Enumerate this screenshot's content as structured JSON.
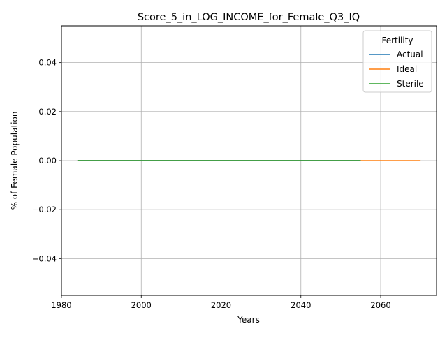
{
  "chart_data": {
    "type": "line",
    "title": "Score_5_in_LOG_INCOME_for_Female_Q3_IQ",
    "xlabel": "Years",
    "ylabel": "% of Female Population",
    "xlim": [
      1980,
      2074
    ],
    "ylim": [
      -0.055,
      0.055
    ],
    "x_ticks": [
      1980,
      2000,
      2020,
      2040,
      2060
    ],
    "y_ticks": [
      -0.04,
      -0.02,
      0.0,
      0.02,
      0.04
    ],
    "x_tick_labels": [
      "1980",
      "2000",
      "2020",
      "2040",
      "2060"
    ],
    "y_tick_labels": [
      "−0.04",
      "−0.02",
      "0.00",
      "0.02",
      "0.04"
    ],
    "grid": true,
    "legend": {
      "title": "Fertility",
      "placement": "top-right"
    },
    "series": [
      {
        "name": "Actual",
        "color": "#1f77b4",
        "x": [
          1984,
          2055
        ],
        "y": [
          0,
          0
        ]
      },
      {
        "name": "Ideal",
        "color": "#ff7f0e",
        "x": [
          1984,
          2070
        ],
        "y": [
          0,
          0
        ]
      },
      {
        "name": "Sterile",
        "color": "#2ca02c",
        "x": [
          1984,
          2055
        ],
        "y": [
          0,
          0
        ]
      }
    ]
  }
}
